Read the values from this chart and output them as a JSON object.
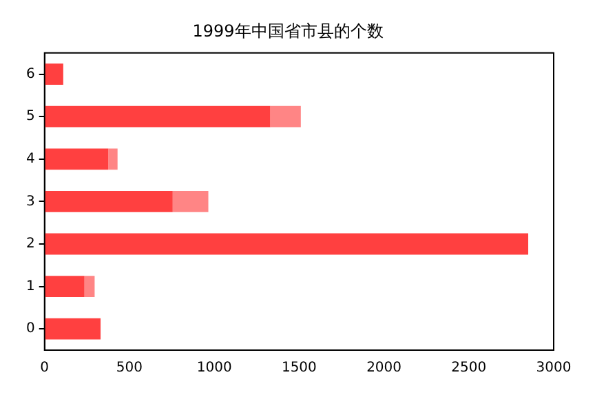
{
  "chart_data": {
    "type": "bar",
    "title": "1999年中国省市县的个数",
    "orientation": "horizontal",
    "stacked": true,
    "categories": [
      "6",
      "5",
      "4",
      "3",
      "2",
      "1",
      "0"
    ],
    "series": [
      {
        "color": "#ff4040",
        "values": [
          110,
          1330,
          375,
          755,
          2850,
          235,
          330
        ]
      },
      {
        "color": "#ff8585",
        "values": [
          null,
          180,
          55,
          210,
          null,
          60,
          null
        ]
      }
    ],
    "xlim": [
      0,
      3000
    ],
    "xticks": [
      0,
      500,
      1000,
      1500,
      2000,
      2500,
      3000
    ],
    "grid": false,
    "legend": false
  }
}
